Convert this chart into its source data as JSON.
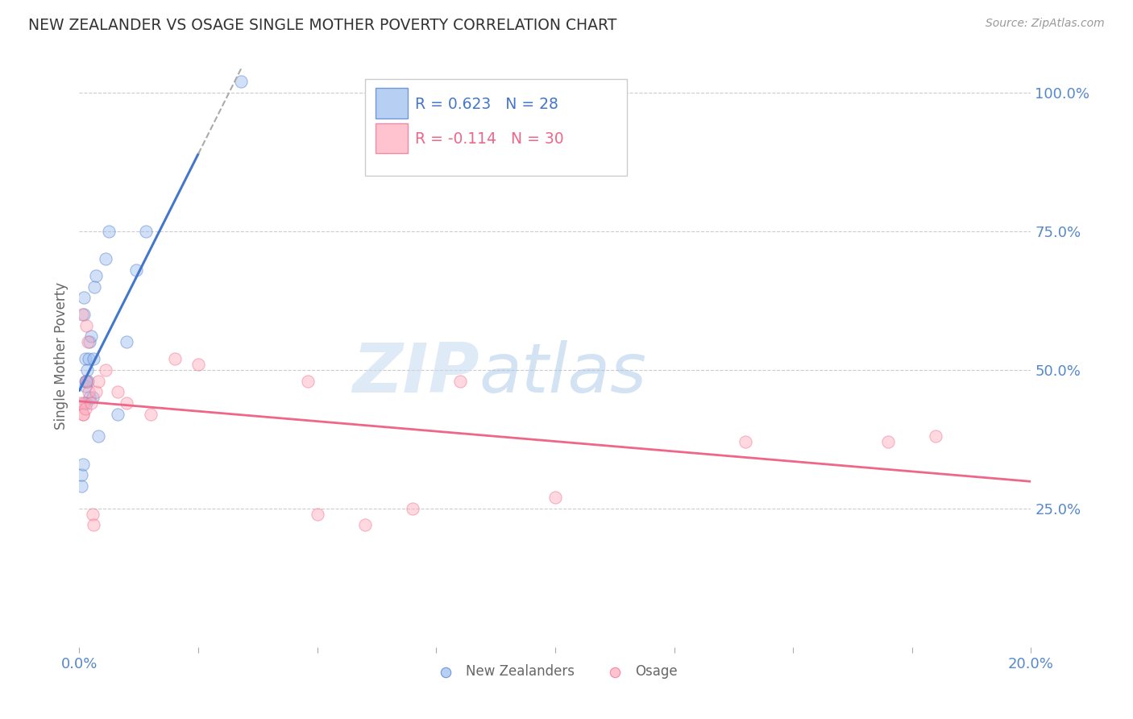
{
  "title": "NEW ZEALANDER VS OSAGE SINGLE MOTHER POVERTY CORRELATION CHART",
  "source": "Source: ZipAtlas.com",
  "ylabel": "Single Mother Poverty",
  "legend_nz": "New Zealanders",
  "legend_osage": "Osage",
  "r_nz": 0.623,
  "n_nz": 28,
  "r_osage": -0.114,
  "n_osage": 30,
  "nz_color": "#99BBEE",
  "osage_color": "#FFAABB",
  "nz_line_color": "#4477CC",
  "osage_line_color": "#EE6688",
  "nz_x": [
    0.05,
    0.05,
    0.08,
    0.1,
    0.1,
    0.12,
    0.12,
    0.13,
    0.15,
    0.15,
    0.17,
    0.18,
    0.2,
    0.22,
    0.22,
    0.25,
    0.28,
    0.3,
    0.32,
    0.35,
    0.4,
    0.55,
    0.62,
    0.8,
    1.0,
    1.2,
    1.4,
    3.4
  ],
  "nz_y": [
    29,
    31,
    33,
    60,
    63,
    48,
    52,
    47,
    44,
    48,
    50,
    48,
    52,
    55,
    45,
    56,
    45,
    52,
    65,
    67,
    38,
    70,
    75,
    42,
    55,
    68,
    75,
    102
  ],
  "osage_x": [
    0.03,
    0.06,
    0.07,
    0.08,
    0.1,
    0.12,
    0.14,
    0.15,
    0.18,
    0.2,
    0.25,
    0.28,
    0.3,
    0.35,
    0.4,
    0.55,
    0.8,
    1.0,
    1.5,
    2.0,
    2.5,
    4.8,
    5.0,
    6.0,
    7.0,
    8.0,
    10.0,
    14.0,
    17.0,
    18.0
  ],
  "osage_y": [
    44,
    60,
    42,
    42,
    44,
    43,
    58,
    48,
    55,
    46,
    44,
    24,
    22,
    46,
    48,
    50,
    46,
    44,
    42,
    52,
    51,
    48,
    24,
    22,
    25,
    48,
    27,
    37,
    37,
    38
  ],
  "xlim": [
    0.0,
    20.0
  ],
  "ylim": [
    0.0,
    105.0
  ],
  "yticks": [
    25.0,
    50.0,
    75.0,
    100.0
  ],
  "ytick_labels": [
    "25.0%",
    "50.0%",
    "75.0%",
    "100.0%"
  ],
  "xticks": [
    0.0,
    2.5,
    5.0,
    7.5,
    10.0,
    12.5,
    15.0,
    17.5,
    20.0
  ],
  "xtick_labels_show": [
    "0.0%",
    "",
    "",
    "",
    "",
    "",
    "",
    "",
    "20.0%"
  ],
  "marker_size": 120,
  "marker_alpha": 0.45,
  "background_color": "#FFFFFF",
  "grid_color": "#CCCCCC",
  "title_color": "#333333",
  "axis_label_color": "#5588CC",
  "watermark_zip": "ZIP",
  "watermark_atlas": "atlas",
  "watermark_color_zip": "#C8D8EE",
  "watermark_color_atlas": "#C8D8EE"
}
